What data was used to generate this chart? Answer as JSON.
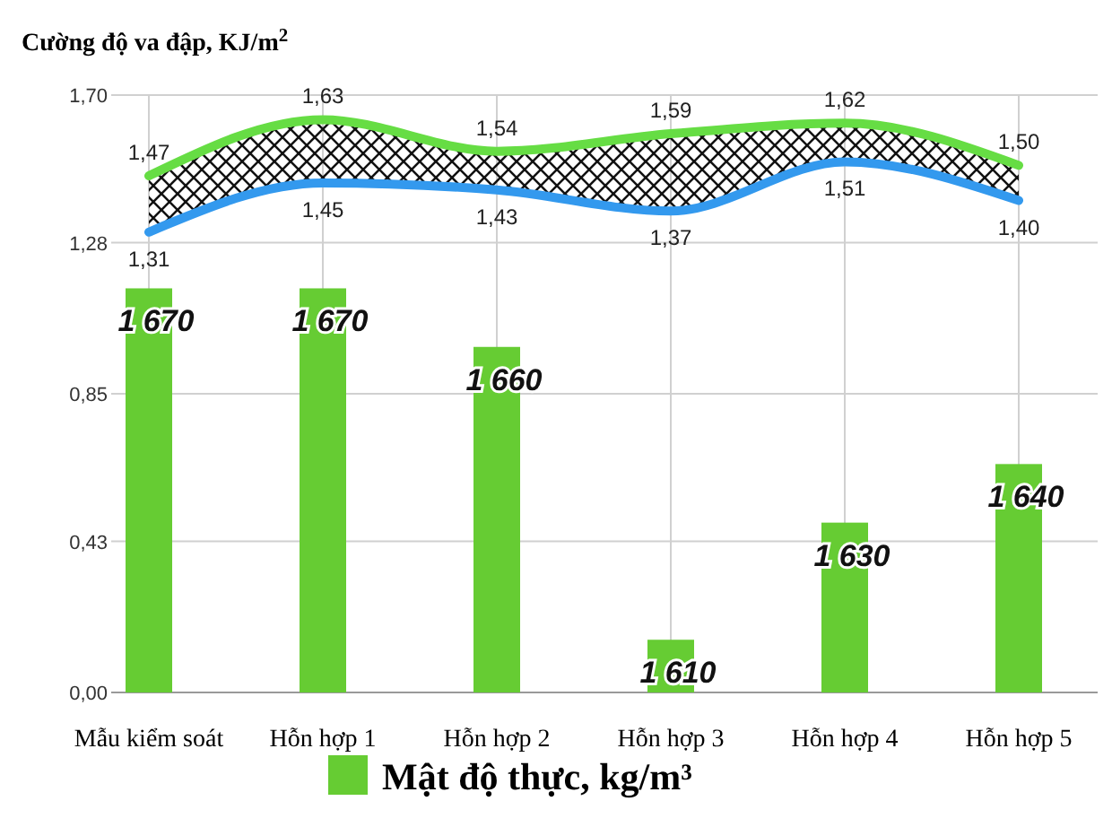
{
  "chart_data": {
    "type": "bar",
    "ylabel": "Cường độ va đập, KJ/m$^{2}$",
    "categories": [
      "Mẫu kiểm soát",
      "Hỗn hợp 1",
      "Hỗn hợp 2",
      "Hỗn hợp 3",
      "Hỗn hợp 4",
      "Hỗn hợp 5"
    ],
    "ylim": [
      0,
      1.7
    ],
    "yticks": [
      {
        "value": 0,
        "label": "0,00"
      },
      {
        "value": 0.43,
        "label": "0,43"
      },
      {
        "value": 0.85,
        "label": "0,85"
      },
      {
        "value": 1.28,
        "label": "1,28"
      },
      {
        "value": 1.7,
        "label": "1,70"
      }
    ],
    "y2lim": [
      1601,
      1703
    ],
    "grid": true,
    "legend": "bottom",
    "data_labels": true,
    "series": [
      {
        "name": "Mật độ thực, kg/m³",
        "color": "#66cc33",
        "axis": "y2",
        "values": [
          1670,
          1670,
          1660,
          1610,
          1630,
          1640
        ],
        "value_labels": [
          "1 670",
          "1 670",
          "1 660",
          "1 610",
          "1 630",
          "1 640"
        ]
      },
      {
        "type": "line",
        "color": "#66dd44",
        "values": [
          1.47,
          1.63,
          1.54,
          1.59,
          1.62,
          1.5
        ],
        "value_labels": [
          "1,47",
          "1,63",
          "1,54",
          "1,59",
          "1,62",
          "1,50"
        ],
        "lower": [
          1.31,
          1.45,
          1.43,
          1.37,
          1.51,
          1.4
        ],
        "upper": [
          1.47,
          1.63,
          1.54,
          1.59,
          1.62,
          1.5
        ]
      },
      {
        "type": "line",
        "color": "#3399ee",
        "values": [
          1.31,
          1.45,
          1.43,
          1.37,
          1.51,
          1.4
        ],
        "value_labels": [
          "1,31",
          "1,45",
          "1,43",
          "1,37",
          "1,51",
          "1,40"
        ]
      }
    ]
  }
}
